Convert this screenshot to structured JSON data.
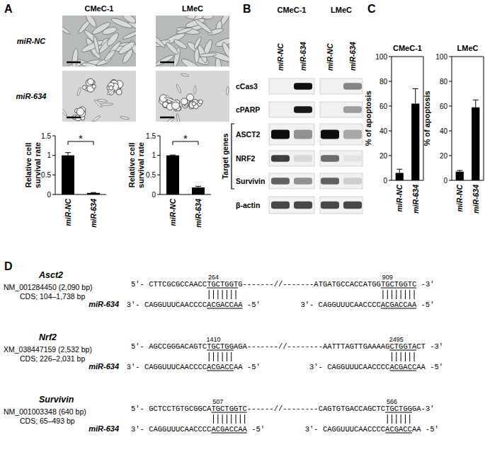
{
  "figure": {
    "panel_labels": [
      "A",
      "B",
      "C",
      "D"
    ]
  },
  "micrographs": {
    "columns": [
      "CMeC-1",
      "LMeC"
    ],
    "rows": [
      "miR-NC",
      "miR-634"
    ]
  },
  "chart_data": [
    {
      "type": "bar",
      "ylabel": "Relative cell survival rate",
      "categories": [
        "miR-NC",
        "miR-634"
      ],
      "values": [
        1.0,
        0.04
      ],
      "errors": [
        0.07,
        0.01
      ],
      "color": "#000000",
      "ylim": [
        0,
        1.5
      ],
      "yticks": [
        0,
        0.5,
        1,
        1.5
      ],
      "annotation": "*"
    },
    {
      "type": "bar",
      "ylabel": "Relative cell survival rate",
      "categories": [
        "miR-NC",
        "miR-634"
      ],
      "values": [
        1.0,
        0.18
      ],
      "errors": [
        0.01,
        0.03
      ],
      "color": "#000000",
      "ylim": [
        0,
        1.5
      ],
      "yticks": [
        0,
        0.5,
        1,
        1.5
      ],
      "annotation": "*"
    },
    {
      "type": "bar",
      "title": "CMeC-1",
      "ylabel": "% of apoptosis",
      "categories": [
        "miR-NC",
        "miR-634"
      ],
      "values": [
        6,
        62
      ],
      "errors": [
        3,
        12
      ],
      "color": "#000000",
      "ylim": [
        0,
        100
      ],
      "yticks": [
        0,
        20,
        40,
        60,
        80,
        100
      ]
    },
    {
      "type": "bar",
      "title": "LMeC",
      "ylabel": "% of apoptosis",
      "categories": [
        "miR-NC",
        "miR-634"
      ],
      "values": [
        7,
        59
      ],
      "errors": [
        1,
        6
      ],
      "color": "#000000",
      "ylim": [
        0,
        100
      ],
      "yticks": [
        0,
        20,
        40,
        60,
        80,
        100
      ]
    }
  ],
  "blot": {
    "columns": [
      "CMeC-1",
      "LMeC"
    ],
    "lanes": [
      "miR-NC",
      "miR-634"
    ],
    "group_label": "Target genes",
    "rows": [
      {
        "label": "cCas3",
        "bands": [
          0,
          0.95,
          0,
          0.45
        ]
      },
      {
        "label": "cPARP",
        "bands": [
          0,
          0.9,
          0,
          0.35
        ]
      },
      {
        "label": "ASCT2",
        "bands": [
          0.95,
          0.4,
          0.95,
          0.3
        ],
        "target": true
      },
      {
        "label": "NRF2",
        "bands": [
          0.75,
          0.1,
          0.55,
          0.05
        ],
        "target": true
      },
      {
        "label": "Survivin",
        "bands": [
          0.6,
          0.4,
          0.6,
          0.15
        ],
        "target": true
      },
      {
        "label": "β-actin",
        "bands": [
          0.7,
          0.7,
          0.7,
          0.7
        ]
      }
    ]
  },
  "sequences": [
    {
      "gene": "Asct2",
      "accession": "NM_001284450 (2,090 bp)",
      "cds": "CDS; 104–1,738 bp",
      "mirna_name": "miR-634",
      "target": [
        {
          "text": "5'- CTTCGCGCCAACC"
        },
        {
          "text": "TGCTGGT",
          "underlined": true,
          "position": 264
        },
        {
          "text": "G-------//-------ATGATGCCACCATGG"
        },
        {
          "text": "TGCTGGTC",
          "underlined": true,
          "position": 909
        },
        {
          "text": " -3'"
        }
      ],
      "mirna": [
        [
          {
            "text": "3'- CAGGUUUCAACCCC"
          },
          {
            "text": "ACGACCAA",
            "underlined": true
          },
          {
            "text": " -5'"
          }
        ],
        [
          {
            "text": "3'- CAGGUUUCAACCCC"
          },
          {
            "text": "ACGACCAA",
            "underlined": true
          },
          {
            "text": " -5'"
          }
        ]
      ]
    },
    {
      "gene": "Nrf2",
      "accession": "XM_038447159 (2,532 bp)",
      "cds": "CDS; 226–2,031 bp",
      "mirna_name": "miR-634",
      "target": [
        {
          "text": "5'- AGCCGGGACAGTC"
        },
        {
          "text": "TGCTGG",
          "underlined": true,
          "position": 1410
        },
        {
          "text": "AGA-------//--------AATTTAGTTGAAAAG"
        },
        {
          "text": "CTGGTA",
          "underlined": true,
          "position": 2495
        },
        {
          "text": "CT -3'"
        }
      ],
      "mirna": [
        [
          {
            "text": "3'- CAGGUUUCAACCCC"
          },
          {
            "text": "ACGACC",
            "underlined": true
          },
          {
            "text": "AA -5'"
          }
        ],
        [
          {
            "text": "3'- CAGGUUUCAACCCC"
          },
          {
            "text": "ACGACC",
            "underlined": true
          },
          {
            "text": "AA -5'"
          }
        ]
      ]
    },
    {
      "gene": "Survivin",
      "accession": "NM_001003348 (640 bp)",
      "cds": "CDS; 65–493 bp",
      "mirna_name": "miR-634",
      "target": [
        {
          "text": "5'- GCTCCTGTGCGGCA"
        },
        {
          "text": "TGCTGGTC",
          "underlined": true,
          "position": 507
        },
        {
          "text": "------//--------CAGTGTGACCAGCTC"
        },
        {
          "text": "TGCTGG",
          "underlined": true,
          "position": 566
        },
        {
          "text": "GA-3'"
        }
      ],
      "mirna": [
        [
          {
            "text": "3'- CAGGUUUCAACCCC"
          },
          {
            "text": "ACGACCAA",
            "underlined": true
          },
          {
            "text": " -5'"
          }
        ],
        [
          {
            "text": "3'- CAGGUUUCAACCCC"
          },
          {
            "text": "ACGACC",
            "underlined": true
          },
          {
            "text": "AA -5'"
          }
        ]
      ]
    }
  ]
}
